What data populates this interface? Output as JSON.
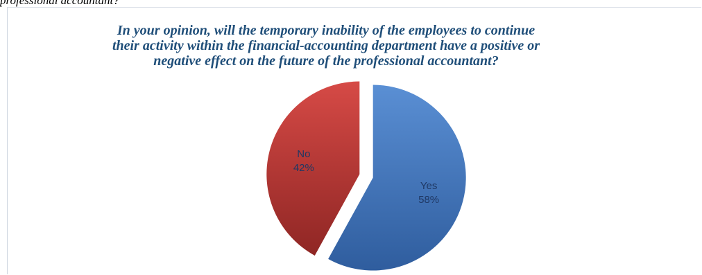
{
  "caption_fragment": "professional accountant?",
  "chart_data": {
    "type": "pie",
    "title_lines": [
      "In your opinion, will the temporary inability of the employees to continue",
      "their activity within the financial-accounting department have a positive or",
      "negative effect on the future of the professional accountant?"
    ],
    "categories": [
      "Yes",
      "No"
    ],
    "values": [
      58,
      42
    ],
    "value_labels": [
      "58%",
      "42%"
    ],
    "colors": {
      "Yes": "#4a7cc0",
      "No": "#c03b38"
    },
    "exploded": true,
    "legend": "none"
  }
}
